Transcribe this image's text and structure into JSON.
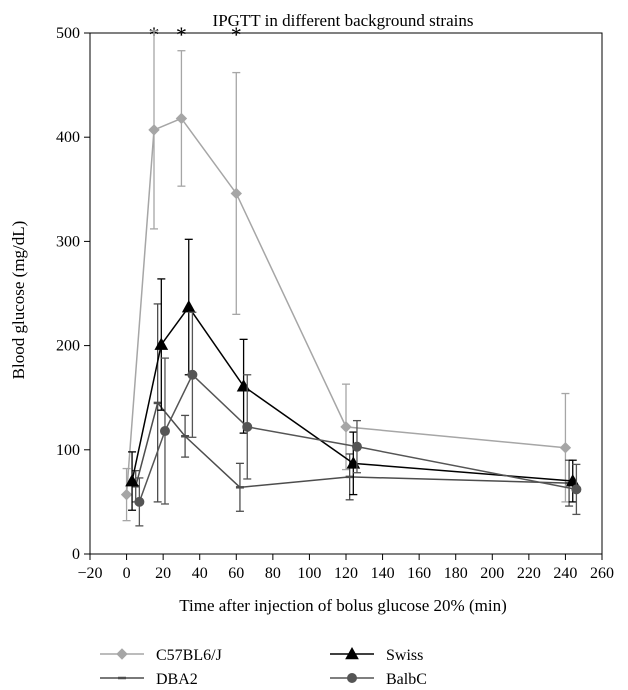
{
  "chart_data": {
    "type": "line",
    "title": "IPGTT in different background strains",
    "xlabel": "Time after injection of bolus glucose 20% (min)",
    "ylabel": "Blood glucose (mg/dL)",
    "xlim": [
      -20,
      260
    ],
    "ylim": [
      0,
      500
    ],
    "x_ticks": [
      -20,
      0,
      20,
      40,
      60,
      80,
      100,
      120,
      140,
      160,
      180,
      200,
      220,
      240,
      260
    ],
    "y_ticks": [
      0,
      100,
      200,
      300,
      400,
      500
    ],
    "grid": false,
    "legend_position": "bottom",
    "annotations": [
      {
        "text": "*",
        "x": 15,
        "y": 505
      },
      {
        "text": "*",
        "x": 30,
        "y": 505
      },
      {
        "text": "*",
        "x": 60,
        "y": 505
      }
    ],
    "series": [
      {
        "name": "C57BL6/J",
        "color": "#a6a6a6",
        "marker": "diamond",
        "points": [
          {
            "x": 0,
            "y": 57,
            "err": 25
          },
          {
            "x": 15,
            "y": 407,
            "err": 95
          },
          {
            "x": 30,
            "y": 418,
            "err": 65
          },
          {
            "x": 60,
            "y": 346,
            "err": 116
          },
          {
            "x": 120,
            "y": 122,
            "err": 41
          },
          {
            "x": 240,
            "y": 102,
            "err": 52
          }
        ]
      },
      {
        "name": "DBA2",
        "color": "#4d4d4d",
        "marker": "dash",
        "points": [
          {
            "x": 5,
            "y": 65,
            "err": 15
          },
          {
            "x": 17,
            "y": 145,
            "err": 95
          },
          {
            "x": 32,
            "y": 113,
            "err": 20
          },
          {
            "x": 62,
            "y": 64,
            "err": 23
          },
          {
            "x": 122,
            "y": 74,
            "err": 22
          },
          {
            "x": 242,
            "y": 68,
            "err": 22
          }
        ]
      },
      {
        "name": "Swiss",
        "color": "#000000",
        "marker": "triangle",
        "points": [
          {
            "x": 3,
            "y": 70,
            "err": 28
          },
          {
            "x": 19,
            "y": 201,
            "err": 63
          },
          {
            "x": 34,
            "y": 237,
            "err": 65
          },
          {
            "x": 64,
            "y": 161,
            "err": 45
          },
          {
            "x": 124,
            "y": 87,
            "err": 30
          },
          {
            "x": 244,
            "y": 70,
            "err": 20
          }
        ]
      },
      {
        "name": "BalbC",
        "color": "#555555",
        "marker": "circle",
        "points": [
          {
            "x": 7,
            "y": 50,
            "err": 23
          },
          {
            "x": 21,
            "y": 118,
            "err": 70
          },
          {
            "x": 36,
            "y": 172,
            "err": 60
          },
          {
            "x": 66,
            "y": 122,
            "err": 50
          },
          {
            "x": 126,
            "y": 103,
            "err": 25
          },
          {
            "x": 246,
            "y": 62,
            "err": 24
          }
        ]
      }
    ]
  }
}
